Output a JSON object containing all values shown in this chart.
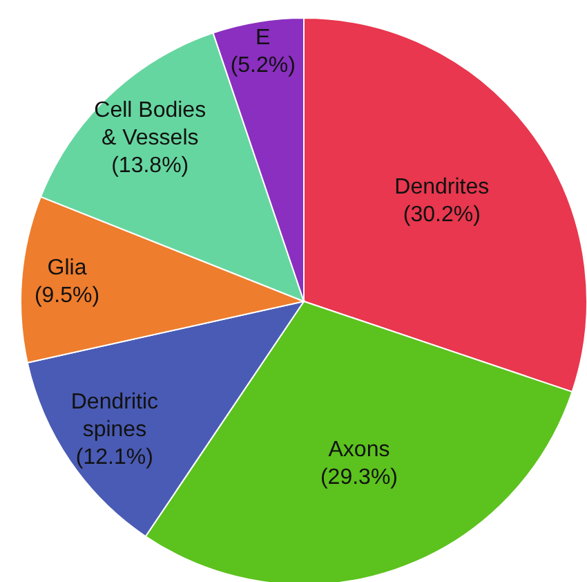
{
  "chart_data": {
    "type": "pie",
    "categories": [
      "Dendrites",
      "Axons",
      "Dendritic spines",
      "Glia",
      "Cell Bodies & Vessels",
      "E"
    ],
    "values": [
      30.2,
      29.3,
      12.1,
      9.5,
      13.8,
      5.2
    ],
    "colors": [
      "#e8374e",
      "#5cc21e",
      "#4a5bb5",
      "#ee7d2d",
      "#66d6a0",
      "#8a2fbf"
    ],
    "value_labels": [
      "(30.2%)",
      "(29.3%)",
      "(12.1%)",
      "(9.5%)",
      "(13.8%)",
      "(5.2%)"
    ]
  }
}
